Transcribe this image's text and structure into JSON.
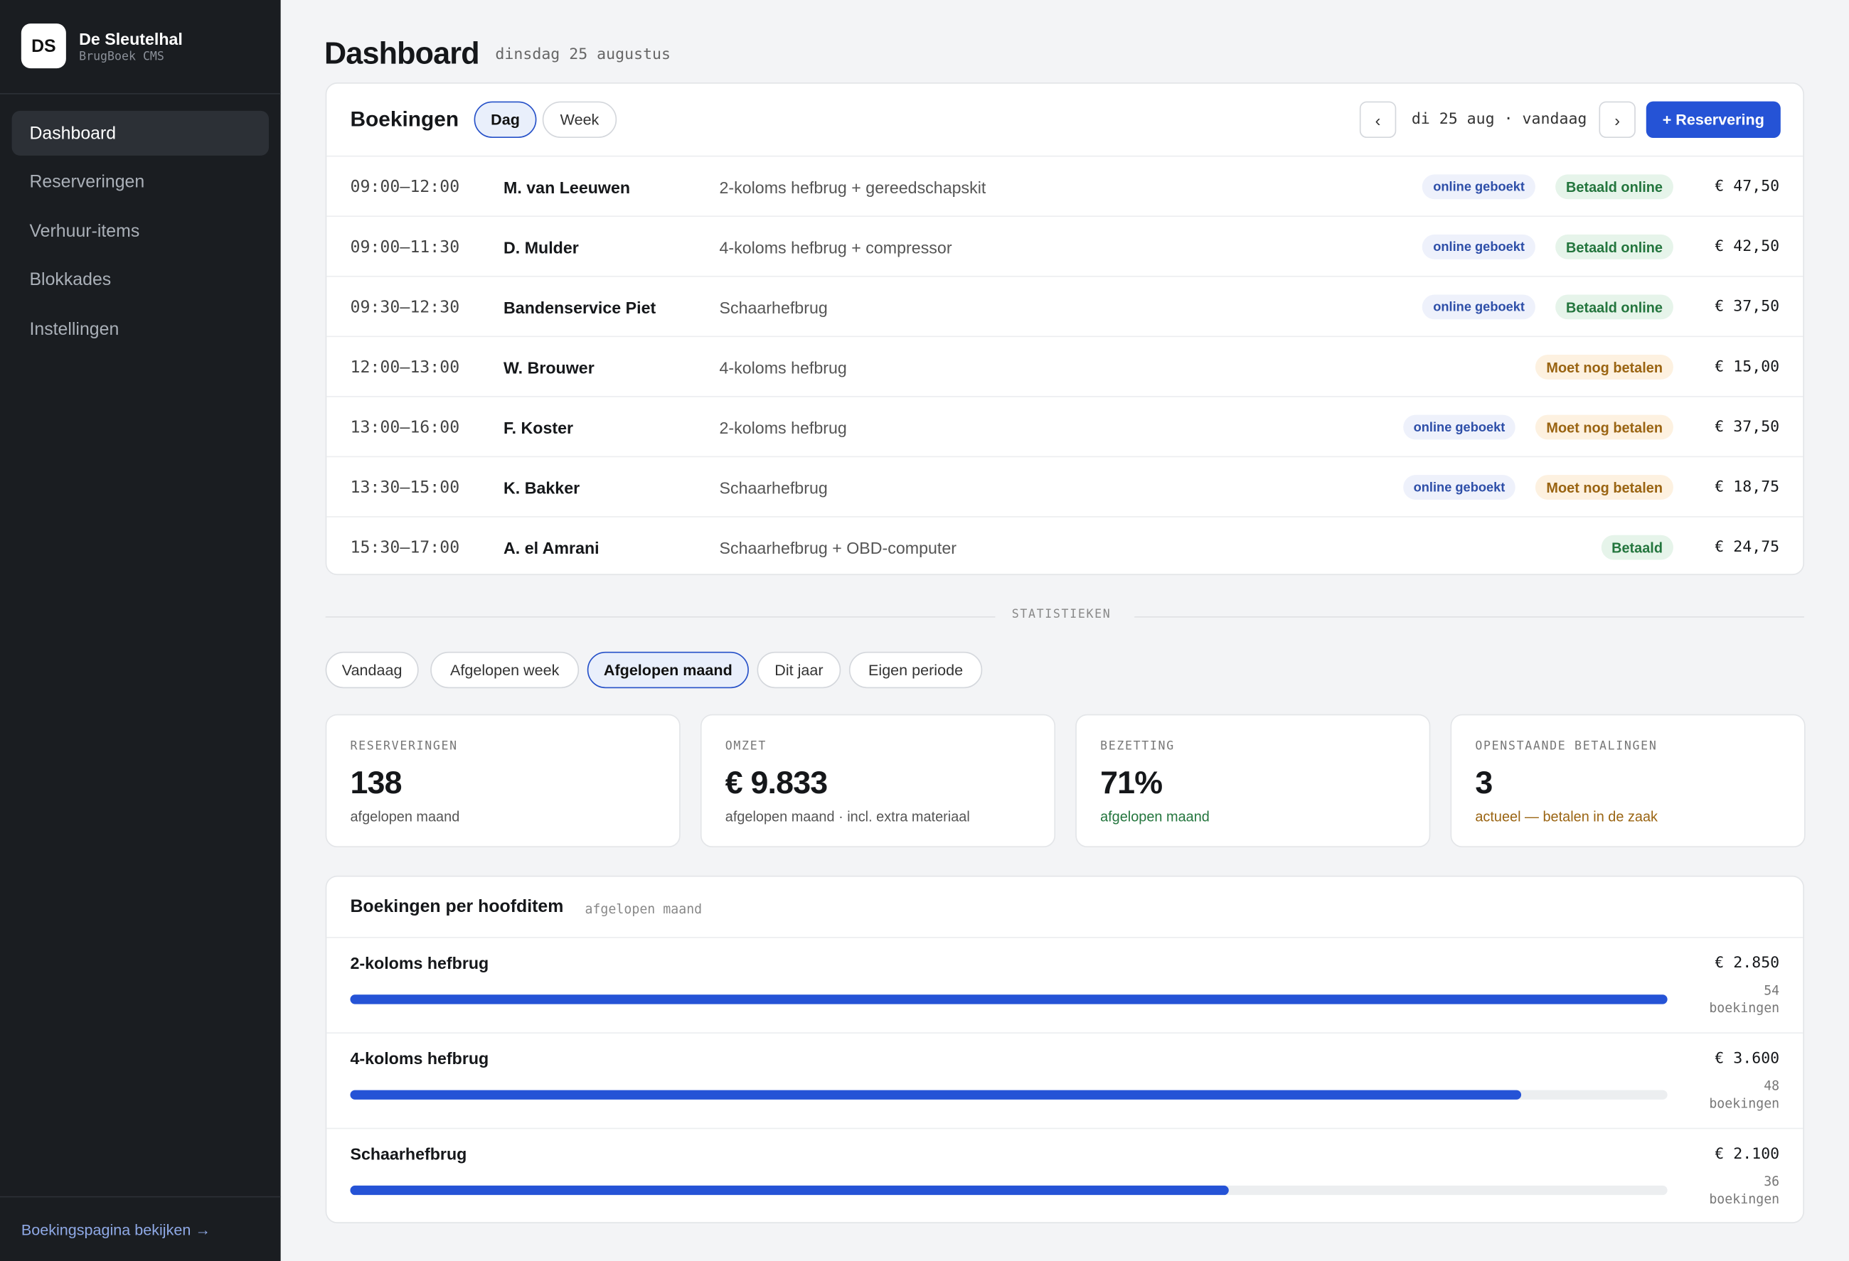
{
  "sidebar": {
    "logo": "DS",
    "brand": "De Sleutelhal",
    "product": "BrugBoek CMS",
    "nav": [
      "Dashboard",
      "Reserveringen",
      "Verhuur-items",
      "Blokkades",
      "Instellingen"
    ],
    "footer_link": "Boekingspagina bekijken →"
  },
  "header": {
    "title": "Dashboard",
    "date": "dinsdag 25 augustus"
  },
  "bookings": {
    "title": "Boekingen",
    "tabs": [
      "Dag",
      "Week"
    ],
    "prev": "‹",
    "current_date": "di 25 aug · vandaag",
    "next": "›",
    "new_button": "+ Reservering",
    "rows": [
      {
        "time": "09:00–12:00",
        "name": "M. van Leeuwen",
        "item": "2-koloms hefbrug + gereedschapskit",
        "source": "online geboekt",
        "status": "Betaald online",
        "price": "€ 47,50"
      },
      {
        "time": "09:00–11:30",
        "name": "D. Mulder",
        "item": "4-koloms hefbrug + compressor",
        "source": "online geboekt",
        "status": "Betaald online",
        "price": "€ 42,50"
      },
      {
        "time": "09:30–12:30",
        "name": "Bandenservice Piet",
        "item": "Schaarhefbrug",
        "source": "online geboekt",
        "status": "Betaald online",
        "price": "€ 37,50"
      },
      {
        "time": "12:00–13:00",
        "name": "W. Brouwer",
        "item": "4-koloms hefbrug",
        "status": "Moet nog betalen",
        "price": "€ 15,00"
      },
      {
        "time": "13:00–16:00",
        "name": "F. Koster",
        "item": "2-koloms hefbrug",
        "source": "online geboekt",
        "status": "Moet nog betalen",
        "price": "€ 37,50"
      },
      {
        "time": "13:30–15:00",
        "name": "K. Bakker",
        "item": "Schaarhefbrug",
        "source": "online geboekt",
        "status": "Moet nog betalen",
        "price": "€ 18,75"
      },
      {
        "time": "15:30–17:00",
        "name": "A. el Amrani",
        "item": "Schaarhefbrug + OBD-computer",
        "status": "Betaald",
        "price": "€ 24,75"
      }
    ]
  },
  "stats": {
    "section_label": "STATISTIEKEN",
    "periods": [
      "Vandaag",
      "Afgelopen week",
      "Afgelopen maand",
      "Dit jaar",
      "Eigen periode"
    ],
    "cards": [
      {
        "label": "RESERVERINGEN",
        "value": "138",
        "sub": "afgelopen maand"
      },
      {
        "label": "OMZET",
        "value": "€ 9.833",
        "sub": "afgelopen maand · incl. extra materiaal"
      },
      {
        "label": "BEZETTING",
        "value": "71%",
        "sub": "afgelopen maand"
      },
      {
        "label": "OPENSTAANDE BETALINGEN",
        "value": "3",
        "sub": "actueel — betalen in de zaak"
      }
    ]
  },
  "items_chart": {
    "title": "Boekingen per hoofditem",
    "subtitle": "afgelopen maand",
    "unit": "boekingen",
    "items": [
      {
        "name": "2-koloms hefbrug",
        "revenue": "€ 2.850",
        "count": 54
      },
      {
        "name": "4-koloms hefbrug",
        "revenue": "€ 3.600",
        "count": 48
      },
      {
        "name": "Schaarhefbrug",
        "revenue": "€ 2.100",
        "count": 36
      }
    ]
  }
}
